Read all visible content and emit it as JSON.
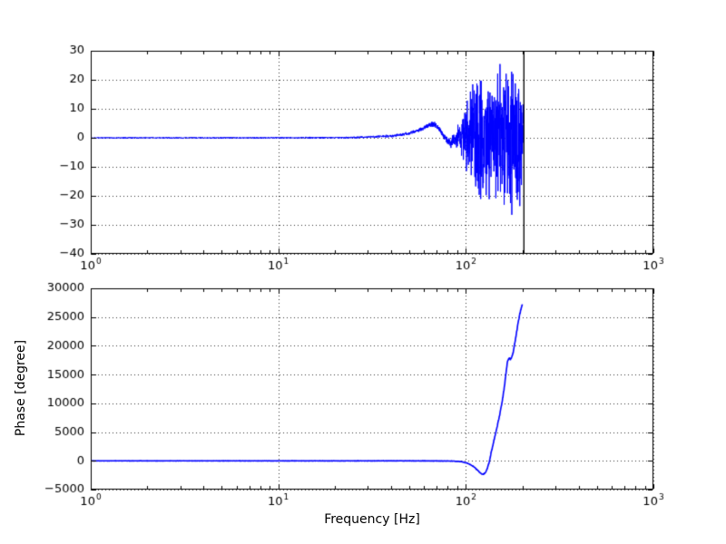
{
  "figure": {
    "background": "#ffffff",
    "line_color": "#0000ff",
    "cursor_color": "#000000",
    "grid_color": "#333333"
  },
  "chart_data": [
    {
      "type": "line",
      "name": "magnitude-response",
      "title": "",
      "xlabel": "",
      "ylabel": "",
      "xscale": "log",
      "xlim": [
        1,
        1000
      ],
      "ylim": [
        -40,
        30
      ],
      "xticks": [
        1,
        10,
        100,
        1000
      ],
      "xtick_labels": [
        "10^0",
        "10^1",
        "10^2",
        "10^3"
      ],
      "yticks": [
        30,
        20,
        10,
        0,
        -10,
        -20,
        -30,
        -40
      ],
      "ytick_labels": [
        "30",
        "20",
        "10",
        "0",
        "−10",
        "−20",
        "−30",
        "−40"
      ],
      "grid": true,
      "series": [
        {
          "name": "magnitude",
          "type": "noisy-line",
          "color": "#0000ff",
          "line_width": 1,
          "seed": 1337,
          "samples": 2600,
          "f_start": 1,
          "f_end": 202,
          "center_points": [
            [
              1,
              0
            ],
            [
              10,
              0
            ],
            [
              25,
              0.1
            ],
            [
              40,
              0.6
            ],
            [
              50,
              1.5
            ],
            [
              58,
              3
            ],
            [
              64,
              4.5
            ],
            [
              68,
              4.8
            ],
            [
              72,
              3.2
            ],
            [
              76,
              0.8
            ],
            [
              80,
              -1.2
            ],
            [
              84,
              -1.6
            ],
            [
              88,
              0
            ],
            [
              93,
              1.2
            ],
            [
              98,
              0.3
            ],
            [
              110,
              0
            ],
            [
              202,
              0
            ]
          ],
          "noise_amplitude_points": [
            [
              1,
              0.25
            ],
            [
              10,
              0.3
            ],
            [
              20,
              0.35
            ],
            [
              35,
              0.5
            ],
            [
              50,
              0.7
            ],
            [
              60,
              0.9
            ],
            [
              70,
              1.1
            ],
            [
              80,
              1.8
            ],
            [
              86,
              3
            ],
            [
              91,
              6
            ],
            [
              96,
              10
            ],
            [
              100,
              14
            ],
            [
              104,
              19
            ],
            [
              109,
              24
            ],
            [
              115,
              27
            ],
            [
              122,
              25
            ],
            [
              130,
              27
            ],
            [
              140,
              25
            ],
            [
              150,
              27
            ],
            [
              160,
              26
            ],
            [
              170,
              28
            ],
            [
              180,
              26
            ],
            [
              188,
              30
            ],
            [
              195,
              27
            ],
            [
              200,
              24
            ],
            [
              202,
              16
            ]
          ]
        },
        {
          "name": "cursor",
          "type": "vline",
          "color": "#000000",
          "line_width": 1.3,
          "x": 204
        }
      ]
    },
    {
      "type": "line",
      "name": "phase-response",
      "title": "",
      "xlabel": "Frequency [Hz]",
      "ylabel": "Phase [degree]",
      "xscale": "log",
      "xlim": [
        1,
        1000
      ],
      "ylim": [
        -5000,
        30000
      ],
      "xticks": [
        1,
        10,
        100,
        1000
      ],
      "xtick_labels": [
        "10^0",
        "10^1",
        "10^2",
        "10^3"
      ],
      "yticks": [
        30000,
        25000,
        20000,
        15000,
        10000,
        5000,
        0,
        -5000
      ],
      "ytick_labels": [
        "30000",
        "25000",
        "20000",
        "15000",
        "10000",
        "5000",
        "0",
        "−5000"
      ],
      "grid": true,
      "series": [
        {
          "name": "phase",
          "type": "noisy-line",
          "color": "#0000ff",
          "line_width": 1.6,
          "seed": 2024,
          "samples": 1600,
          "f_start": 1,
          "f_end": 200,
          "center_points": [
            [
              1,
              0
            ],
            [
              60,
              0
            ],
            [
              85,
              -40
            ],
            [
              95,
              -150
            ],
            [
              103,
              -450
            ],
            [
              110,
              -1000
            ],
            [
              116,
              -1700
            ],
            [
              121,
              -2250
            ],
            [
              124,
              -2350
            ],
            [
              127,
              -2050
            ],
            [
              130,
              -1350
            ],
            [
              133,
              -300
            ],
            [
              136,
              1200
            ],
            [
              139,
              2600
            ],
            [
              143,
              4300
            ],
            [
              147,
              6000
            ],
            [
              151,
              7800
            ],
            [
              155,
              9700
            ],
            [
              158,
              11300
            ],
            [
              161,
              13200
            ],
            [
              163,
              14800
            ],
            [
              165,
              16200
            ],
            [
              167,
              17300
            ],
            [
              170,
              17900
            ],
            [
              173,
              17650
            ],
            [
              176,
              18100
            ],
            [
              179,
              19000
            ],
            [
              183,
              20800
            ],
            [
              187,
              22600
            ],
            [
              191,
              24400
            ],
            [
              195,
              25900
            ],
            [
              198,
              26800
            ],
            [
              200,
              27300
            ]
          ],
          "noise_amplitude_points": [
            [
              1,
              25
            ],
            [
              90,
              40
            ],
            [
              120,
              90
            ],
            [
              140,
              160
            ],
            [
              200,
              200
            ]
          ]
        }
      ]
    }
  ]
}
